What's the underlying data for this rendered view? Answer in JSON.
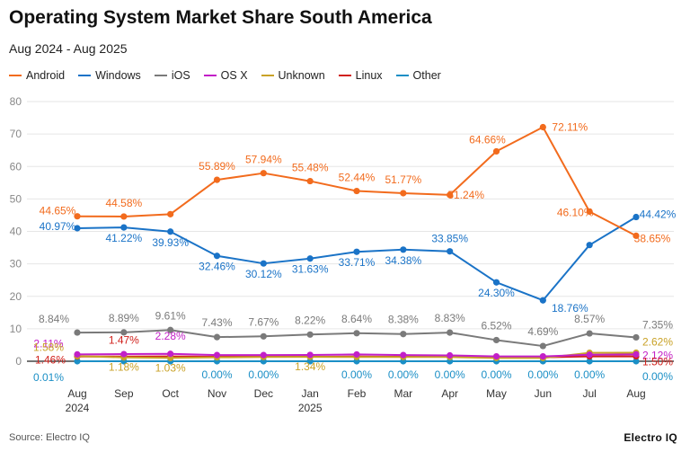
{
  "header": {
    "title": "Operating System Market Share South America",
    "subtitle": "Aug 2024 - Aug 2025"
  },
  "footer": {
    "source": "Source: Electro IQ",
    "brand": "Electro IQ"
  },
  "chart_data": {
    "type": "line",
    "title": "Operating System Market Share South America",
    "subtitle": "Aug 2024 - Aug 2025",
    "categories": [
      [
        "Aug",
        "2024"
      ],
      [
        "Sep"
      ],
      [
        "Oct"
      ],
      [
        "Nov"
      ],
      [
        "Dec"
      ],
      [
        "Jan",
        "2025"
      ],
      [
        "Feb"
      ],
      [
        "Mar"
      ],
      [
        "Apr"
      ],
      [
        "May"
      ],
      [
        "Jun"
      ],
      [
        "Jul"
      ],
      [
        "Aug"
      ]
    ],
    "ylim": [
      0,
      80
    ],
    "yticks": [
      0,
      10,
      20,
      30,
      40,
      50,
      60,
      70,
      80
    ],
    "grid": true,
    "legend_position": "top-left",
    "series": [
      {
        "name": "Android",
        "color": "#f26b1d",
        "values": [
          44.65,
          44.58,
          45.3,
          55.89,
          57.94,
          55.48,
          52.44,
          51.77,
          51.24,
          64.66,
          72.11,
          46.1,
          38.65
        ],
        "labels": [
          "44.65%",
          "44.58%",
          null,
          "55.89%",
          "57.94%",
          "55.48%",
          "52.44%",
          "51.77%",
          "51.24%",
          "64.66%",
          "72.11%",
          "46.10%",
          "38.65%"
        ]
      },
      {
        "name": "Windows",
        "color": "#1a73c7",
        "values": [
          40.97,
          41.22,
          39.93,
          32.46,
          30.12,
          31.63,
          33.71,
          34.38,
          33.85,
          24.3,
          18.76,
          35.8,
          44.42
        ],
        "labels": [
          "40.97%",
          "41.22%",
          "39.93%",
          "32.46%",
          "30.12%",
          "31.63%",
          "33.71%",
          "34.38%",
          "33.85%",
          "24.30%",
          "18.76%",
          null,
          "44.42%"
        ]
      },
      {
        "name": "iOS",
        "color": "#7a7a7a",
        "values": [
          8.84,
          8.89,
          9.61,
          7.43,
          7.67,
          8.22,
          8.64,
          8.38,
          8.83,
          6.52,
          4.69,
          8.57,
          7.35
        ],
        "labels": [
          "8.84%",
          "8.89%",
          "9.61%",
          "7.43%",
          "7.67%",
          "8.22%",
          "8.64%",
          "8.38%",
          "8.83%",
          "6.52%",
          "4.69%",
          "8.57%",
          "7.35%"
        ]
      },
      {
        "name": "OS X",
        "color": "#c21fc7",
        "values": [
          2.11,
          2.2,
          2.28,
          1.9,
          1.9,
          1.95,
          2.1,
          1.9,
          1.8,
          1.5,
          1.5,
          2.0,
          2.12
        ],
        "labels": [
          "2.11%",
          null,
          "2.28%",
          null,
          null,
          null,
          null,
          null,
          null,
          null,
          null,
          null,
          "2.12%"
        ]
      },
      {
        "name": "Unknown",
        "color": "#c9a227",
        "values": [
          1.58,
          1.18,
          1.03,
          1.2,
          1.3,
          1.34,
          1.3,
          1.3,
          1.3,
          1.0,
          1.0,
          2.6,
          2.62
        ],
        "labels": [
          "1.58%",
          "1.18%",
          "1.03%",
          null,
          null,
          "1.34%",
          null,
          null,
          null,
          null,
          null,
          null,
          "2.62%"
        ]
      },
      {
        "name": "Linux",
        "color": "#d0201b",
        "values": [
          1.46,
          1.47,
          1.5,
          1.4,
          1.4,
          1.4,
          1.45,
          1.4,
          1.4,
          1.2,
          1.2,
          1.5,
          1.5
        ],
        "labels": [
          "1.46%",
          "1.47%",
          null,
          null,
          null,
          null,
          null,
          null,
          null,
          null,
          null,
          null,
          "1.50%"
        ]
      },
      {
        "name": "Other",
        "color": "#1b8fc6",
        "values": [
          0.01,
          0.0,
          0.0,
          0.0,
          0.0,
          0.0,
          0.0,
          0.0,
          0.0,
          0.0,
          0.0,
          0.0,
          0.0
        ],
        "labels": [
          "0.01%",
          null,
          null,
          "0.00%",
          "0.00%",
          null,
          "0.00%",
          "0.00%",
          "0.00%",
          "0.00%",
          "0.00%",
          "0.00%",
          "0.00%"
        ]
      }
    ]
  }
}
